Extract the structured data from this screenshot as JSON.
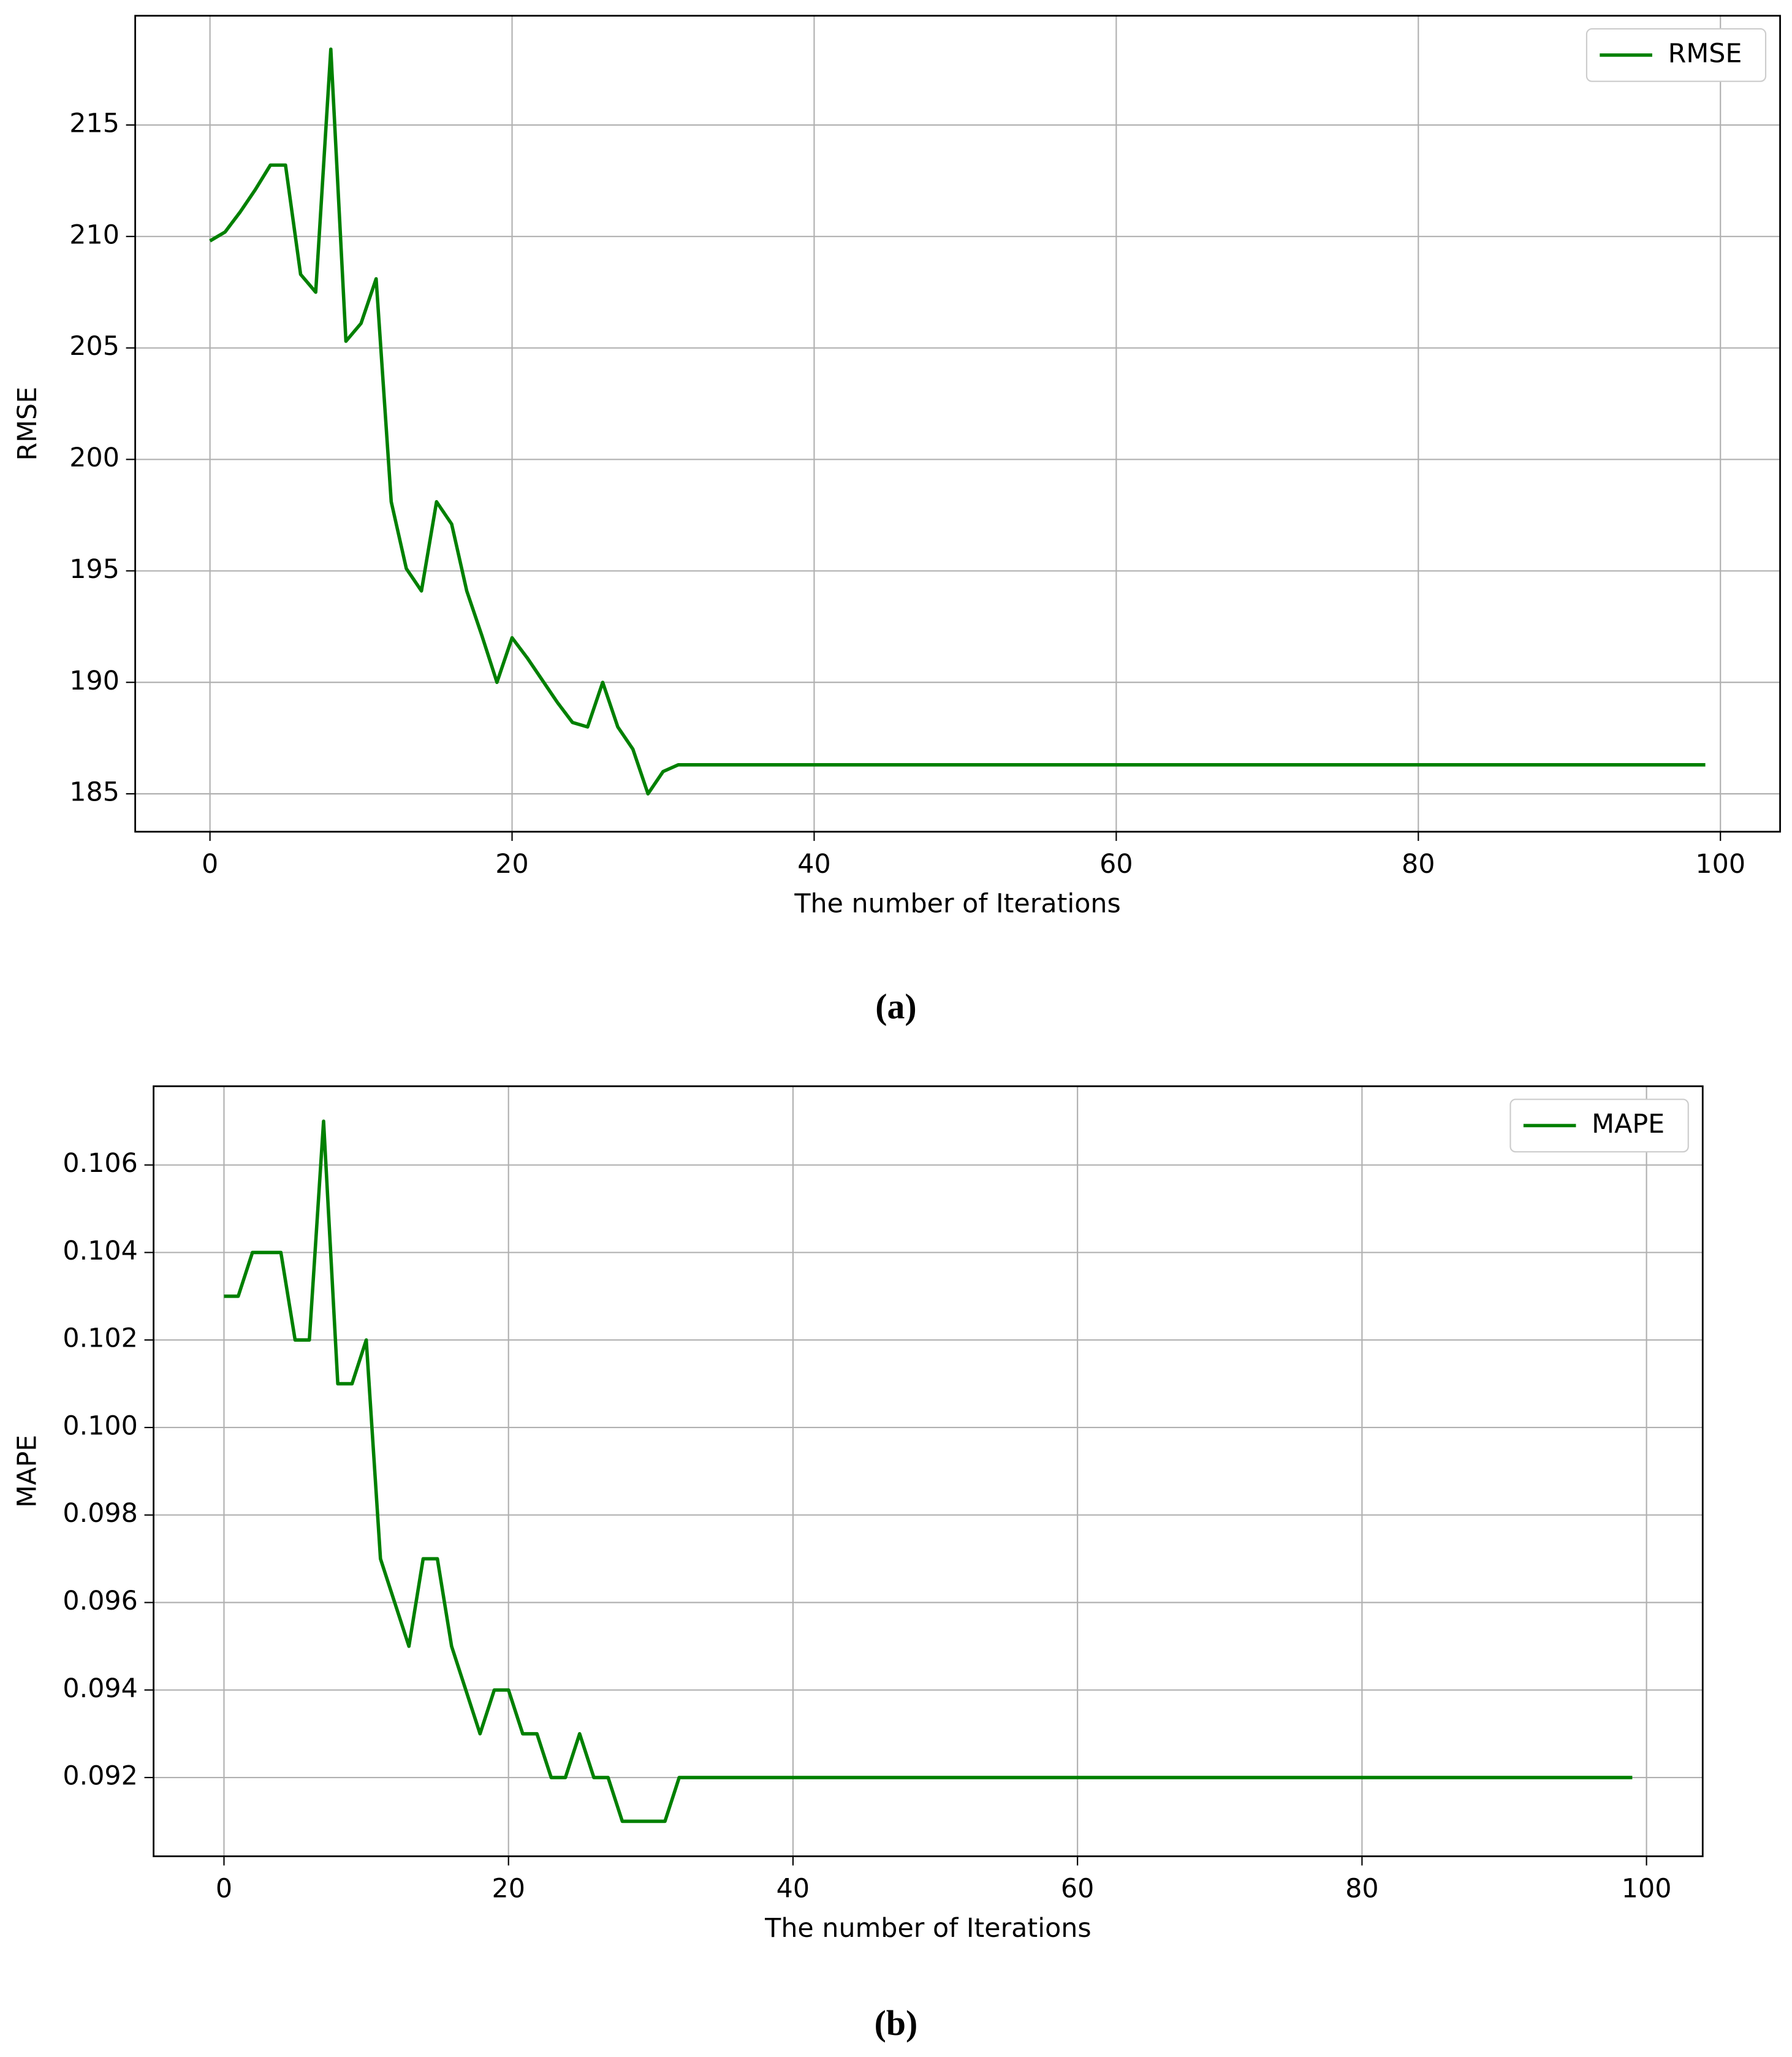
{
  "chart_data": [
    {
      "type": "line",
      "caption": "(a)",
      "x_label": "The number of Iterations",
      "y_label": "RMSE",
      "x": [
        0,
        1,
        2,
        3,
        4,
        5,
        6,
        7,
        8,
        9,
        10,
        11,
        12,
        13,
        14,
        15,
        16,
        17,
        18,
        19,
        20,
        21,
        22,
        23,
        24,
        25,
        26,
        27,
        28,
        29,
        30,
        31,
        32,
        33,
        34,
        35,
        36,
        37,
        38,
        39,
        40,
        41,
        42,
        43,
        44,
        45,
        46,
        47,
        48,
        49,
        50,
        51,
        52,
        53,
        54,
        55,
        56,
        57,
        58,
        59,
        60,
        61,
        62,
        63,
        64,
        65,
        66,
        67,
        68,
        69,
        70,
        71,
        72,
        73,
        74,
        75,
        76,
        77,
        78,
        79,
        80,
        81,
        82,
        83,
        84,
        85,
        86,
        87,
        88,
        89,
        90,
        91,
        92,
        93,
        94,
        95,
        96,
        97,
        98,
        99
      ],
      "series": [
        {
          "name": "RMSE",
          "color": "#008000",
          "values": [
            209.8,
            210.2,
            211.1,
            212.1,
            213.2,
            213.2,
            208.3,
            207.5,
            218.4,
            205.3,
            206.1,
            208.1,
            198.1,
            195.1,
            194.1,
            198.1,
            197.1,
            194.1,
            192.1,
            190.0,
            192.0,
            191.1,
            190.1,
            189.1,
            188.2,
            188.0,
            190.0,
            188.0,
            187.0,
            185.0,
            186.0,
            186.3,
            186.3,
            186.3,
            186.3,
            186.3,
            186.3,
            186.3,
            186.3,
            186.3,
            186.3,
            186.3,
            186.3,
            186.3,
            186.3,
            186.3,
            186.3,
            186.3,
            186.3,
            186.3,
            186.3,
            186.3,
            186.3,
            186.3,
            186.3,
            186.3,
            186.3,
            186.3,
            186.3,
            186.3,
            186.3,
            186.3,
            186.3,
            186.3,
            186.3,
            186.3,
            186.3,
            186.3,
            186.3,
            186.3,
            186.3,
            186.3,
            186.3,
            186.3,
            186.3,
            186.3,
            186.3,
            186.3,
            186.3,
            186.3,
            186.3,
            186.3,
            186.3,
            186.3,
            186.3,
            186.3,
            186.3,
            186.3,
            186.3,
            186.3,
            186.3,
            186.3,
            186.3,
            186.3,
            186.3,
            186.3,
            186.3,
            186.3,
            186.3,
            186.3
          ]
        }
      ],
      "xlim": [
        -4.95,
        103.95
      ],
      "ylim": [
        183.3,
        219.9
      ],
      "xticks": [
        0,
        20,
        40,
        60,
        80,
        100
      ],
      "yticks": [
        185,
        190,
        195,
        200,
        205,
        210,
        215
      ],
      "grid": true,
      "legend": "upper right"
    },
    {
      "type": "line",
      "caption": "(b)",
      "x_label": "The number of Iterations",
      "y_label": "MAPE",
      "x": [
        0,
        1,
        2,
        3,
        4,
        5,
        6,
        7,
        8,
        9,
        10,
        11,
        12,
        13,
        14,
        15,
        16,
        17,
        18,
        19,
        20,
        21,
        22,
        23,
        24,
        25,
        26,
        27,
        28,
        29,
        30,
        31,
        32,
        33,
        34,
        35,
        36,
        37,
        38,
        39,
        40,
        41,
        42,
        43,
        44,
        45,
        46,
        47,
        48,
        49,
        50,
        51,
        52,
        53,
        54,
        55,
        56,
        57,
        58,
        59,
        60,
        61,
        62,
        63,
        64,
        65,
        66,
        67,
        68,
        69,
        70,
        71,
        72,
        73,
        74,
        75,
        76,
        77,
        78,
        79,
        80,
        81,
        82,
        83,
        84,
        85,
        86,
        87,
        88,
        89,
        90,
        91,
        92,
        93,
        94,
        95,
        96,
        97,
        98,
        99
      ],
      "series": [
        {
          "name": "MAPE",
          "color": "#008000",
          "values": [
            0.103,
            0.103,
            0.104,
            0.104,
            0.104,
            0.102,
            0.102,
            0.107,
            0.101,
            0.101,
            0.102,
            0.097,
            0.096,
            0.095,
            0.097,
            0.097,
            0.095,
            0.094,
            0.093,
            0.094,
            0.094,
            0.093,
            0.093,
            0.092,
            0.092,
            0.093,
            0.092,
            0.092,
            0.091,
            0.091,
            0.091,
            0.091,
            0.092,
            0.092,
            0.092,
            0.092,
            0.092,
            0.092,
            0.092,
            0.092,
            0.092,
            0.092,
            0.092,
            0.092,
            0.092,
            0.092,
            0.092,
            0.092,
            0.092,
            0.092,
            0.092,
            0.092,
            0.092,
            0.092,
            0.092,
            0.092,
            0.092,
            0.092,
            0.092,
            0.092,
            0.092,
            0.092,
            0.092,
            0.092,
            0.092,
            0.092,
            0.092,
            0.092,
            0.092,
            0.092,
            0.092,
            0.092,
            0.092,
            0.092,
            0.092,
            0.092,
            0.092,
            0.092,
            0.092,
            0.092,
            0.092,
            0.092,
            0.092,
            0.092,
            0.092,
            0.092,
            0.092,
            0.092,
            0.092,
            0.092,
            0.092,
            0.092,
            0.092,
            0.092,
            0.092,
            0.092,
            0.092,
            0.092,
            0.092,
            0.092
          ]
        }
      ],
      "xlim": [
        -4.95,
        103.95
      ],
      "ylim": [
        0.0902,
        0.1078
      ],
      "xticks": [
        0,
        20,
        40,
        60,
        80,
        100
      ],
      "yticks": [
        0.092,
        0.094,
        0.096,
        0.098,
        {
          "value": 0.1,
          "label": "0.100"
        },
        0.102,
        0.104,
        0.106
      ],
      "grid": true,
      "legend": "upper right"
    }
  ]
}
